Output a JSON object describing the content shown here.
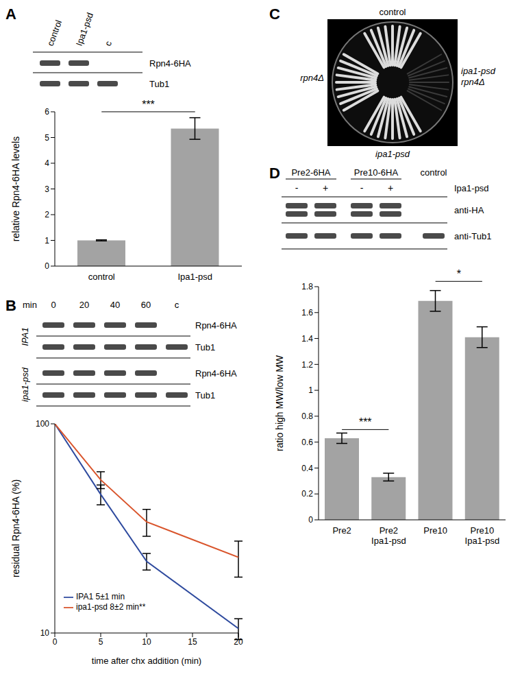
{
  "chart_data": [
    {
      "type": "bar",
      "categories": [
        "control",
        "Ipa1-psd"
      ],
      "values": [
        1,
        5.35
      ],
      "errors": [
        0.02,
        0.42
      ],
      "color": "#a3a3a3",
      "ylim": [
        0,
        6
      ],
      "yticks": [
        0,
        1,
        2,
        3,
        4,
        5,
        6
      ],
      "y_label": "relative Rpn4-6HA levels",
      "annotations": [
        {
          "text": "***",
          "from": "control",
          "to": "Ipa1-psd"
        }
      ]
    },
    {
      "type": "line",
      "x": [
        0,
        5,
        10,
        20
      ],
      "xlim": [
        0,
        20
      ],
      "xticks": [
        0,
        5,
        10,
        15,
        20
      ],
      "ylim": [
        10,
        100
      ],
      "yticks": [
        10,
        100
      ],
      "log": "y",
      "x_label": "time after chx addition (min)",
      "y_label": "residual Rpn4-6HA (%)",
      "legend": "lower left",
      "series": [
        {
          "name": "IPA1 5±1 min",
          "color": "#2e4a9e",
          "values": [
            100,
            46,
            22,
            10.5
          ],
          "errors": [
            0,
            5,
            2,
            1.2
          ]
        },
        {
          "name": "ipa1-psd 8±2 min**",
          "color": "#d9542b",
          "values": [
            100,
            54,
            34,
            23
          ],
          "errors": [
            0,
            5,
            5,
            4.5
          ]
        }
      ]
    },
    {
      "type": "bar",
      "categories": [
        "Pre2",
        "Pre2 Ipa1-psd",
        "Pre10",
        "Pre10 Ipa1-psd"
      ],
      "values": [
        0.63,
        0.33,
        1.69,
        1.41
      ],
      "errors": [
        0.04,
        0.03,
        0.08,
        0.08
      ],
      "color": "#a3a3a3",
      "ylim": [
        0,
        1.8
      ],
      "yticks": [
        0,
        0.2,
        0.4,
        0.6,
        0.8,
        1,
        1.2,
        1.4,
        1.6,
        1.8
      ],
      "y_label": "ratio high MW/low MW",
      "annotations": [
        {
          "text": "***",
          "from": "Pre2",
          "to": "Pre2 Ipa1-psd"
        },
        {
          "text": "*",
          "from": "Pre10",
          "to": "Pre10 Ipa1-psd"
        }
      ]
    }
  ],
  "panel_labels": [
    "A",
    "B",
    "C",
    "D"
  ],
  "blots": {
    "A": {
      "lanes": [
        "control",
        "Ipa1-psd",
        "c"
      ],
      "rows": [
        "Rpn4-6HA",
        "Tub1"
      ]
    },
    "B": {
      "header": "min",
      "lanes": [
        "0",
        "20",
        "40",
        "60",
        "c"
      ],
      "groups": [
        {
          "name": "IPA1",
          "rows": [
            "Rpn4-6HA",
            "Tub1"
          ]
        },
        {
          "name": "ipa1-psd",
          "rows": [
            "Rpn4-6HA",
            "Tub1"
          ]
        }
      ]
    },
    "D": {
      "groups": [
        {
          "name": "Pre2-6HA",
          "signs": [
            "-",
            "+"
          ]
        },
        {
          "name": "Pre10-6HA",
          "signs": [
            "-",
            "+"
          ]
        }
      ],
      "control": "control",
      "sign_label": "Ipa1-psd",
      "rows": [
        "anti-HA",
        "anti-Tub1"
      ]
    }
  },
  "plate": {
    "top": "control",
    "left": "rpn4Δ",
    "right": [
      "ipa1-psd",
      "rpn4Δ"
    ],
    "bottom": "ipa1-psd"
  }
}
